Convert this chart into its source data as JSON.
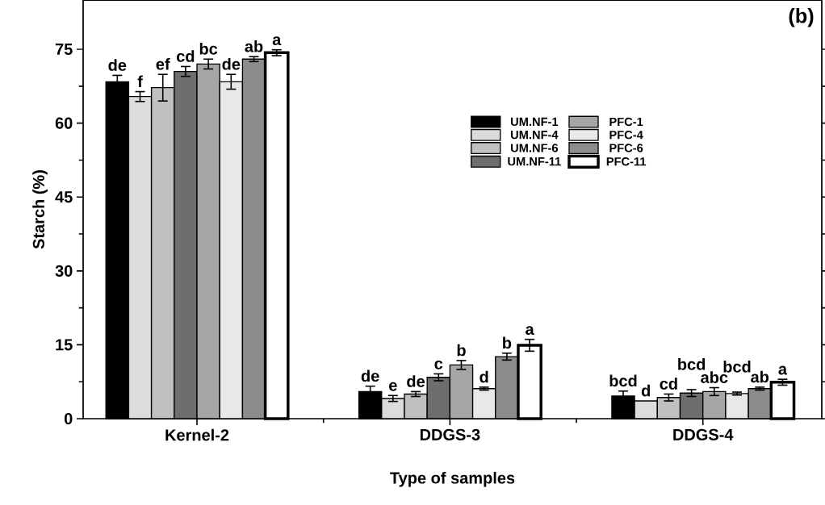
{
  "chart_data": {
    "type": "bar",
    "xlabel": "Type of samples",
    "ylabel": "Starch (%)",
    "categories": [
      "Kernel-2",
      "DDGS-3",
      "DDGS-4"
    ],
    "ylim": [
      0,
      85
    ],
    "yticks": [
      0,
      15,
      30,
      45,
      60,
      75
    ],
    "legend": "top",
    "grid": false,
    "annotations": [
      "(b)"
    ],
    "series": [
      {
        "name": "UM.NF-1",
        "color": "#000000",
        "values": [
          68.4,
          5.5,
          4.6
        ],
        "errors": [
          1.3,
          1.1,
          1.0
        ],
        "value_labels": [
          "de",
          "de",
          "bcd"
        ]
      },
      {
        "name": "UM.NF-4",
        "color": "#dcdcdc",
        "values": [
          65.4,
          4.1,
          3.6
        ],
        "errors": [
          1.0,
          0.6,
          null
        ],
        "value_labels": [
          "f",
          "e",
          "d"
        ]
      },
      {
        "name": "UM.NF-6",
        "color": "#c0c0c0",
        "values": [
          67.2,
          5.0,
          4.3
        ],
        "errors": [
          2.7,
          0.5,
          0.7
        ],
        "value_labels": [
          "ef",
          "de",
          "cd"
        ]
      },
      {
        "name": "UM.NF-11",
        "color": "#6e6e6e",
        "values": [
          70.5,
          8.4,
          5.2
        ],
        "errors": [
          1.0,
          0.7,
          0.7
        ],
        "value_labels": [
          "cd",
          "c",
          "bcd"
        ]
      },
      {
        "name": "PFC-1",
        "color": "#a6a6a6",
        "values": [
          72.0,
          10.9,
          5.5
        ],
        "errors": [
          1.0,
          0.9,
          0.8
        ],
        "value_labels": [
          "bc",
          "b",
          "abc"
        ]
      },
      {
        "name": "PFC-4",
        "color": "#e8e8e8",
        "values": [
          68.4,
          6.1,
          5.1
        ],
        "errors": [
          1.5,
          0.3,
          0.3
        ],
        "value_labels": [
          "de",
          "d",
          "bcd"
        ]
      },
      {
        "name": "PFC-6",
        "color": "#8c8c8c",
        "values": [
          73.0,
          12.6,
          6.1
        ],
        "errors": [
          0.5,
          0.7,
          0.3
        ],
        "value_labels": [
          "ab",
          "b",
          "ab"
        ]
      },
      {
        "name": "PFC-11",
        "color": "#ffffff",
        "values": [
          74.3,
          14.9,
          7.4
        ],
        "errors": [
          0.6,
          1.2,
          0.6
        ],
        "value_labels": [
          "a",
          "a",
          "a"
        ]
      }
    ]
  }
}
